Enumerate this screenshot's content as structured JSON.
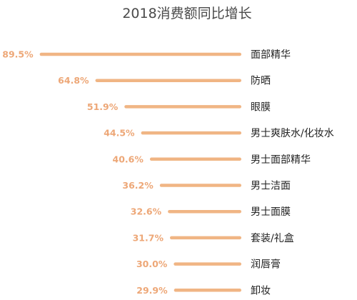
{
  "chart_data": {
    "type": "bar",
    "orientation": "horizontal",
    "title": "2018消费额同比增长",
    "categories": [
      "面部精华",
      "防晒",
      "眼膜",
      "男士爽肤水/化妆水",
      "男士面部精华",
      "男士洁面",
      "男士面膜",
      "套装/礼盒",
      "润唇膏",
      "卸妆"
    ],
    "values": [
      89.5,
      64.8,
      51.9,
      44.5,
      40.6,
      36.2,
      32.6,
      31.7,
      30.0,
      29.9
    ],
    "value_labels": [
      "89.5%",
      "64.8%",
      "51.9%",
      "44.5%",
      "40.6%",
      "36.2%",
      "32.6%",
      "31.7%",
      "30.0%",
      "29.9%"
    ],
    "unit": "%",
    "xlim": [
      0,
      89.5
    ],
    "grid": false,
    "legend": "none",
    "colors": {
      "bar": "#f0b584",
      "value_label": "#eda777",
      "category_label": "#222222",
      "title": "#4a4a4a"
    }
  }
}
